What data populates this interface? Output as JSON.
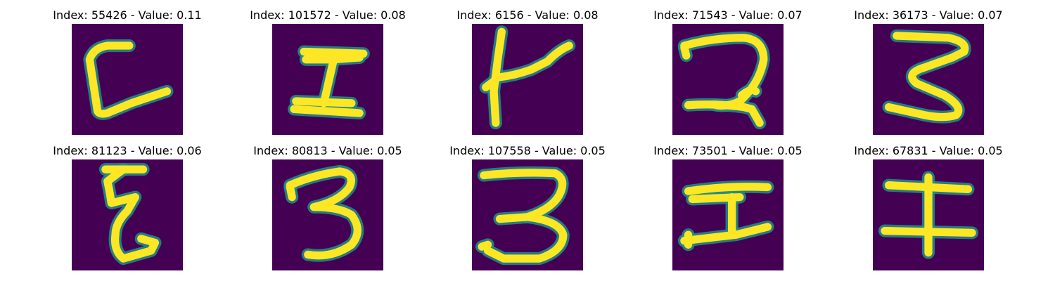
{
  "colors": {
    "background": "#440154",
    "stroke_core": "#fde725",
    "stroke_edge": "#21918c",
    "title_text": "#000000"
  },
  "panels": [
    {
      "label": "Index: 55426 - Value: 0.11",
      "index": 55426,
      "value": 0.11
    },
    {
      "label": "Index: 101572 - Value: 0.08",
      "index": 101572,
      "value": 0.08
    },
    {
      "label": "Index: 6156 - Value: 0.08",
      "index": 6156,
      "value": 0.08
    },
    {
      "label": "Index: 71543 - Value: 0.07",
      "index": 71543,
      "value": 0.07
    },
    {
      "label": "Index: 36173 - Value: 0.07",
      "index": 36173,
      "value": 0.07
    },
    {
      "label": "Index: 81123 - Value: 0.06",
      "index": 81123,
      "value": 0.06
    },
    {
      "label": "Index: 80813 - Value: 0.05",
      "index": 80813,
      "value": 0.05
    },
    {
      "label": "Index: 107558 - Value: 0.05",
      "index": 107558,
      "value": 0.05
    },
    {
      "label": "Index: 73501 - Value: 0.05",
      "index": 73501,
      "value": 0.05
    },
    {
      "label": "Index: 67831 - Value: 0.05",
      "index": 67831,
      "value": 0.05
    }
  ]
}
